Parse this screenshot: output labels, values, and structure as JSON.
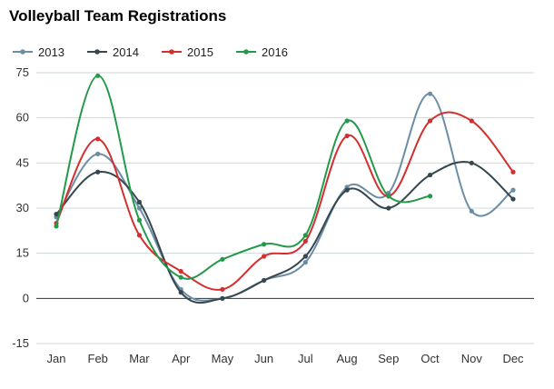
{
  "chart_data": {
    "type": "line",
    "title": "Volleyball Team Registrations",
    "xlabel": "",
    "ylabel": "",
    "categories": [
      "Jan",
      "Feb",
      "Mar",
      "Apr",
      "May",
      "Jun",
      "Jul",
      "Aug",
      "Sep",
      "Oct",
      "Nov",
      "Dec"
    ],
    "ylim": [
      -15,
      75
    ],
    "yticks": [
      -15,
      0,
      15,
      30,
      45,
      60,
      75
    ],
    "legend_position": "top-left",
    "grid": true,
    "series": [
      {
        "name": "2013",
        "color": "#6c8ea5",
        "values": [
          27,
          48,
          30,
          3,
          0,
          6,
          12,
          37,
          35,
          68,
          29,
          36
        ]
      },
      {
        "name": "2014",
        "color": "#36474f",
        "values": [
          28,
          42,
          32,
          2,
          0,
          6,
          14,
          36,
          30,
          41,
          45,
          33
        ]
      },
      {
        "name": "2015",
        "color": "#d32f2f",
        "values": [
          25,
          53,
          21,
          9,
          3,
          14,
          19,
          54,
          34,
          59,
          59,
          42
        ]
      },
      {
        "name": "2016",
        "color": "#239a4a",
        "values": [
          24,
          74,
          26,
          7,
          13,
          18,
          21,
          59,
          34,
          34,
          null,
          null
        ]
      }
    ]
  }
}
